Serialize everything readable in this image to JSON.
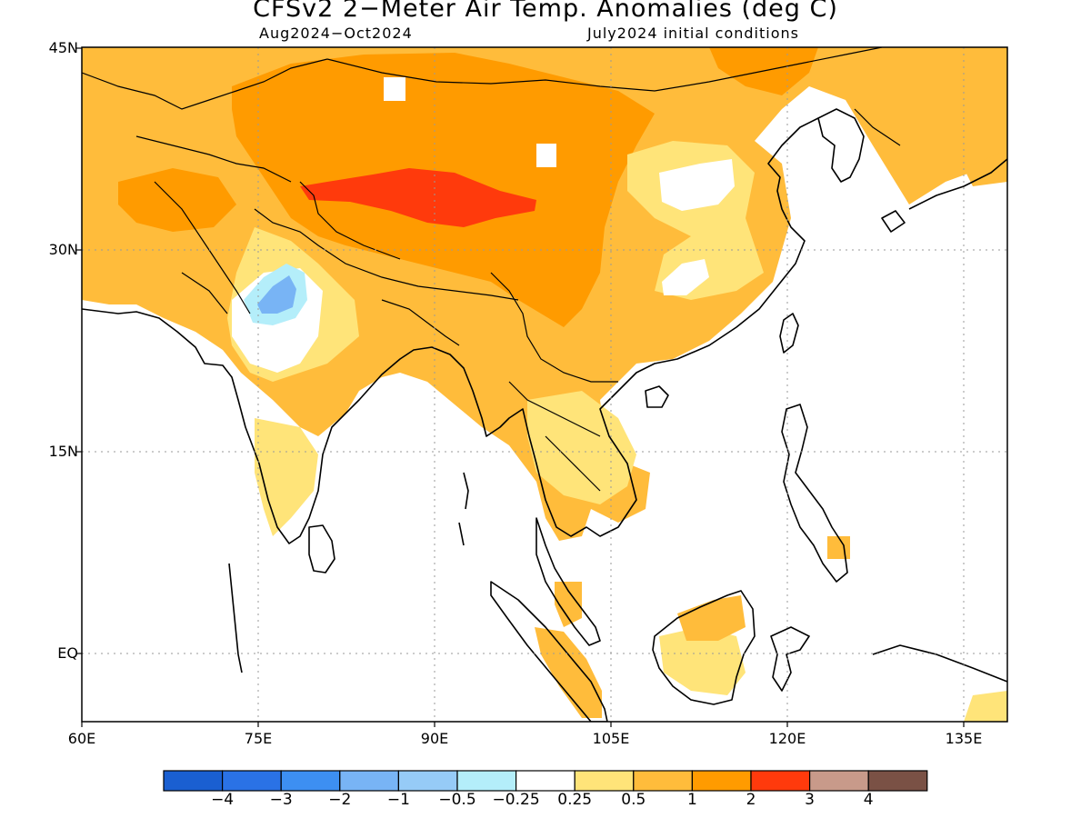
{
  "title": "CFSv2 2−Meter Air Temp. Anomalies (deg C)",
  "subtitle_left": "Aug2024−Oct2024",
  "subtitle_right": "July2024 initial conditions",
  "lat_labels": [
    "45N",
    "30N",
    "15N",
    "EQ"
  ],
  "lon_labels": [
    "60E",
    "75E",
    "90E",
    "105E",
    "120E",
    "135E"
  ],
  "colorbar": {
    "colors": [
      "#1a5fd1",
      "#2a72e6",
      "#3d8ff2",
      "#78b4f5",
      "#96cbf7",
      "#b4eefa",
      "#ffffff",
      "#ffe479",
      "#ffbc3b",
      "#ff9b00",
      "#ff3a0c",
      "#c89a8a",
      "#7a5145"
    ],
    "labels": [
      "−4",
      "−3",
      "−2",
      "−1",
      "−0.5",
      "−0.25",
      "0.25",
      "0.5",
      "1",
      "2",
      "3",
      "4"
    ]
  },
  "anomaly_colors": {
    "warm_05_1": "#ffbc3b",
    "warm_025_05": "#ffe479",
    "warm_1_2": "#ff9b00",
    "warm_2_3": "#ff3a0c",
    "cool_05": "#b4eefa",
    "cool_1": "#78b4f5"
  }
}
